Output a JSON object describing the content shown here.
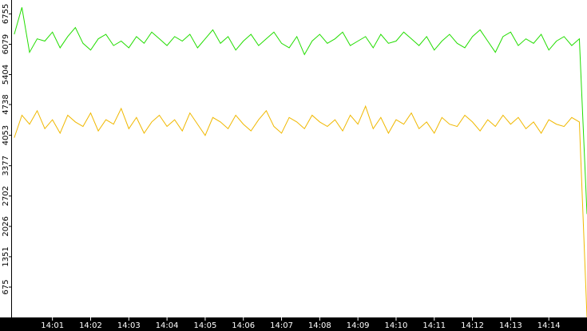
{
  "chart_data": {
    "type": "line",
    "x": [
      0,
      0.2,
      0.4,
      0.6,
      0.8,
      1,
      1.2,
      1.4,
      1.6,
      1.8,
      2,
      2.2,
      2.4,
      2.6,
      2.8,
      3,
      3.2,
      3.4,
      3.6,
      3.8,
      4,
      4.2,
      4.4,
      4.6,
      4.8,
      5,
      5.2,
      5.4,
      5.6,
      5.8,
      6,
      6.2,
      6.4,
      6.6,
      6.8,
      7,
      7.2,
      7.4,
      7.6,
      7.8,
      8,
      8.2,
      8.4,
      8.6,
      8.8,
      9,
      9.2,
      9.4,
      9.6,
      9.8,
      10,
      10.2,
      10.4,
      10.6,
      10.8,
      11,
      11.2,
      11.4,
      11.6,
      11.8,
      12,
      12.2,
      12.4,
      12.6,
      12.8,
      13,
      13.2,
      13.4,
      13.6,
      13.8,
      14,
      14.2,
      14.4,
      14.6,
      14.8,
      15
    ],
    "series": [
      {
        "color": "#22dd00",
        "values": [
          6300,
          6900,
          5900,
          6200,
          6150,
          6350,
          6000,
          6250,
          6450,
          6100,
          5950,
          6200,
          6300,
          6050,
          6150,
          6000,
          6250,
          6100,
          6350,
          6200,
          6050,
          6250,
          6150,
          6300,
          6000,
          6200,
          6400,
          6100,
          6250,
          5950,
          6150,
          6300,
          6050,
          6200,
          6350,
          6100,
          6000,
          6250,
          5850,
          6150,
          6300,
          6100,
          6200,
          6350,
          6050,
          6150,
          6250,
          6000,
          6300,
          6100,
          6150,
          6350,
          6200,
          6050,
          6250,
          5950,
          6150,
          6300,
          6100,
          6000,
          6250,
          6400,
          6150,
          5900,
          6250,
          6350,
          6050,
          6200,
          6100,
          6300,
          5950,
          6150,
          6250,
          6050,
          6200,
          2300
        ]
      },
      {
        "color": "#f0b800",
        "values": [
          4000,
          4500,
          4300,
          4600,
          4200,
          4400,
          4100,
          4500,
          4350,
          4250,
          4550,
          4150,
          4400,
          4300,
          4650,
          4200,
          4450,
          4100,
          4350,
          4500,
          4250,
          4400,
          4150,
          4550,
          4300,
          4050,
          4450,
          4350,
          4200,
          4500,
          4300,
          4150,
          4400,
          4600,
          4250,
          4100,
          4450,
          4350,
          4200,
          4500,
          4350,
          4250,
          4400,
          4150,
          4500,
          4300,
          4700,
          4200,
          4450,
          4100,
          4400,
          4300,
          4550,
          4200,
          4350,
          4100,
          4450,
          4300,
          4250,
          4500,
          4350,
          4150,
          4400,
          4250,
          4500,
          4300,
          4450,
          4200,
          4350,
          4100,
          4400,
          4300,
          4250,
          4450,
          4350,
          0
        ]
      }
    ],
    "xlim": [
      -0.06,
      15.0
    ],
    "xticks": [
      {
        "value": 1,
        "label": "14:01"
      },
      {
        "value": 2,
        "label": "14:02"
      },
      {
        "value": 3,
        "label": "14:03"
      },
      {
        "value": 4,
        "label": "14:04"
      },
      {
        "value": 5,
        "label": "14:05"
      },
      {
        "value": 6,
        "label": "14:06"
      },
      {
        "value": 7,
        "label": "14:07"
      },
      {
        "value": 8,
        "label": "14:08"
      },
      {
        "value": 9,
        "label": "14:09"
      },
      {
        "value": 10,
        "label": "14:10"
      },
      {
        "value": 11,
        "label": "14:11"
      },
      {
        "value": 12,
        "label": "14:12"
      },
      {
        "value": 13,
        "label": "14:13"
      },
      {
        "value": 14,
        "label": "14:14"
      }
    ],
    "ylim": [
      0,
      7064
    ],
    "yticks": [
      675,
      1351,
      2026,
      2702,
      3377,
      4053,
      4738,
      5404,
      6079,
      6755
    ]
  }
}
